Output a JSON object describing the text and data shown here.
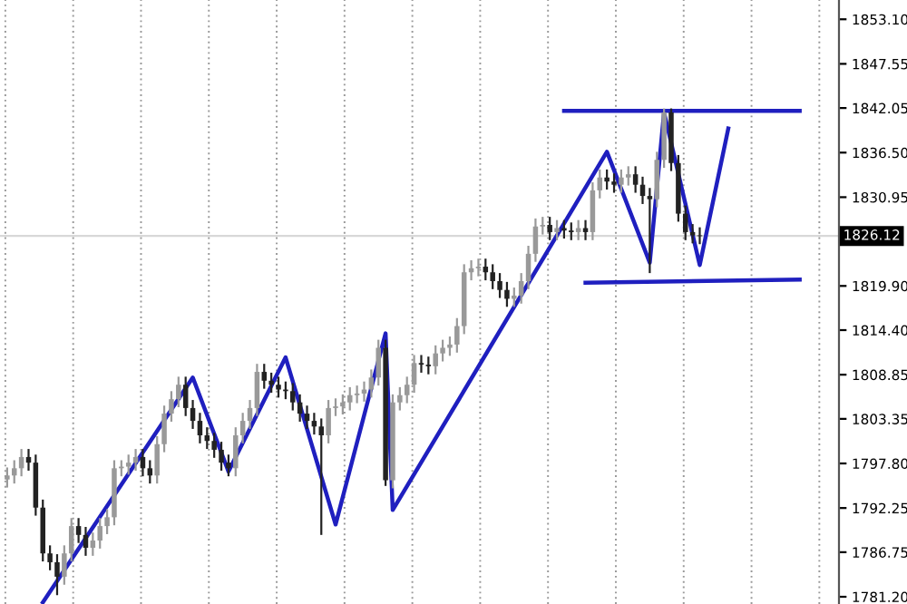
{
  "chart_data": {
    "type": "candlestick",
    "categories": [
      null,
      null,
      null,
      null,
      null,
      null,
      null,
      null,
      null,
      null,
      null,
      null,
      null,
      null,
      null,
      null,
      null,
      null,
      null,
      null,
      null,
      null,
      null,
      null,
      null,
      null,
      null,
      null,
      null,
      null,
      null,
      null,
      null,
      null,
      null,
      null,
      null,
      null,
      null,
      null,
      null,
      null,
      null,
      null,
      null,
      null,
      null,
      null,
      null,
      null,
      null,
      null,
      null,
      null,
      null,
      null,
      null,
      null,
      null,
      null,
      null,
      null,
      null,
      null,
      null,
      null,
      null,
      null,
      null,
      null,
      null,
      null,
      null,
      null,
      null,
      null,
      null,
      null,
      null,
      null,
      null,
      null,
      null,
      null,
      null,
      null,
      null,
      null,
      null,
      null,
      null,
      null,
      null,
      null,
      null,
      null,
      null,
      null,
      null,
      null,
      null,
      null,
      null,
      null,
      null,
      null,
      null,
      null,
      null,
      null,
      null,
      null
    ],
    "ohlc": [
      [
        1795.8,
        1797.3,
        1794.8,
        1796.3
      ],
      [
        1796.3,
        1798.2,
        1795.3,
        1797.2
      ],
      [
        1797.2,
        1799.6,
        1796.2,
        1798.6
      ],
      [
        1798.6,
        1799.6,
        1796.9,
        1797.9
      ],
      [
        1797.9,
        1798.9,
        1791.3,
        1792.3
      ],
      [
        1792.3,
        1793.3,
        1785.6,
        1786.6
      ],
      [
        1786.6,
        1787.6,
        1784.5,
        1785.5
      ],
      [
        1785.5,
        1786.5,
        1781.4,
        1783.7
      ],
      [
        1783.7,
        1787.6,
        1782.7,
        1786.6
      ],
      [
        1786.6,
        1791.0,
        1785.6,
        1790.0
      ],
      [
        1790.0,
        1791.0,
        1787.9,
        1788.9
      ],
      [
        1788.9,
        1789.9,
        1786.3,
        1787.3
      ],
      [
        1787.3,
        1789.2,
        1786.3,
        1788.2
      ],
      [
        1788.2,
        1791.0,
        1787.2,
        1790.0
      ],
      [
        1790.0,
        1792.1,
        1789.0,
        1791.1
      ],
      [
        1791.1,
        1798.2,
        1790.1,
        1797.2
      ],
      [
        1797.2,
        1798.2,
        1796.2,
        1797.4
      ],
      [
        1797.4,
        1798.9,
        1796.4,
        1797.9
      ],
      [
        1797.9,
        1799.6,
        1796.9,
        1798.6
      ],
      [
        1798.6,
        1799.6,
        1796.2,
        1797.2
      ],
      [
        1797.2,
        1798.2,
        1795.3,
        1796.3
      ],
      [
        1796.3,
        1801.2,
        1795.3,
        1800.2
      ],
      [
        1800.2,
        1805.0,
        1799.2,
        1804.0
      ],
      [
        1804.0,
        1806.8,
        1803.0,
        1805.8
      ],
      [
        1805.8,
        1808.6,
        1804.8,
        1807.6
      ],
      [
        1807.6,
        1808.6,
        1803.7,
        1804.7
      ],
      [
        1804.7,
        1805.7,
        1802.1,
        1803.1
      ],
      [
        1803.1,
        1804.1,
        1800.3,
        1801.3
      ],
      [
        1801.3,
        1802.3,
        1799.6,
        1800.6
      ],
      [
        1800.6,
        1801.6,
        1798.5,
        1799.5
      ],
      [
        1799.5,
        1800.5,
        1796.9,
        1797.9
      ],
      [
        1797.9,
        1798.9,
        1796.2,
        1797.2
      ],
      [
        1797.2,
        1802.3,
        1796.2,
        1801.3
      ],
      [
        1801.3,
        1804.1,
        1800.3,
        1803.1
      ],
      [
        1803.1,
        1805.7,
        1802.1,
        1804.7
      ],
      [
        1804.7,
        1810.2,
        1803.7,
        1809.2
      ],
      [
        1809.2,
        1810.2,
        1807.1,
        1808.1
      ],
      [
        1808.1,
        1809.1,
        1806.6,
        1807.6
      ],
      [
        1807.6,
        1808.6,
        1806.0,
        1807.0
      ],
      [
        1807.0,
        1808.0,
        1805.8,
        1806.8
      ],
      [
        1806.8,
        1807.8,
        1804.4,
        1805.4
      ],
      [
        1805.4,
        1806.4,
        1803.0,
        1804.0
      ],
      [
        1804.0,
        1805.0,
        1802.1,
        1803.1
      ],
      [
        1803.1,
        1804.1,
        1801.4,
        1802.4
      ],
      [
        1802.4,
        1803.4,
        1788.9,
        1801.3
      ],
      [
        1801.3,
        1805.7,
        1800.3,
        1804.7
      ],
      [
        1804.7,
        1805.9,
        1803.7,
        1804.9
      ],
      [
        1804.9,
        1806.4,
        1803.9,
        1805.4
      ],
      [
        1805.4,
        1807.3,
        1804.4,
        1806.3
      ],
      [
        1806.3,
        1807.5,
        1805.3,
        1806.5
      ],
      [
        1806.5,
        1808.0,
        1805.5,
        1807.0
      ],
      [
        1807.0,
        1809.5,
        1806.0,
        1808.5
      ],
      [
        1808.5,
        1813.2,
        1807.5,
        1812.2
      ],
      [
        1812.2,
        1813.2,
        1795.0,
        1795.7
      ],
      [
        1795.7,
        1806.4,
        1794.7,
        1805.4
      ],
      [
        1805.4,
        1807.3,
        1804.4,
        1806.3
      ],
      [
        1806.3,
        1808.6,
        1805.3,
        1807.6
      ],
      [
        1807.6,
        1811.3,
        1806.6,
        1810.3
      ],
      [
        1810.3,
        1811.3,
        1809.1,
        1810.1
      ],
      [
        1810.1,
        1811.1,
        1808.9,
        1809.9
      ],
      [
        1809.9,
        1812.5,
        1808.9,
        1811.5
      ],
      [
        1811.5,
        1813.2,
        1810.5,
        1812.2
      ],
      [
        1812.2,
        1813.6,
        1811.2,
        1812.6
      ],
      [
        1812.6,
        1815.9,
        1811.6,
        1814.9
      ],
      [
        1814.9,
        1822.6,
        1813.9,
        1821.6
      ],
      [
        1821.6,
        1823.1,
        1820.6,
        1822.1
      ],
      [
        1822.1,
        1823.3,
        1821.1,
        1822.3
      ],
      [
        1822.3,
        1823.3,
        1820.6,
        1821.6
      ],
      [
        1821.6,
        1822.6,
        1819.5,
        1820.5
      ],
      [
        1820.5,
        1821.5,
        1818.4,
        1819.4
      ],
      [
        1819.4,
        1820.4,
        1817.3,
        1818.3
      ],
      [
        1818.3,
        1819.7,
        1817.3,
        1818.7
      ],
      [
        1818.7,
        1821.5,
        1817.7,
        1820.5
      ],
      [
        1820.5,
        1824.9,
        1819.5,
        1823.9
      ],
      [
        1823.9,
        1828.3,
        1822.9,
        1827.3
      ],
      [
        1827.3,
        1828.5,
        1826.3,
        1827.5
      ],
      [
        1827.5,
        1828.5,
        1825.6,
        1826.6
      ],
      [
        1826.6,
        1828.1,
        1825.6,
        1827.1
      ],
      [
        1827.1,
        1828.1,
        1825.8,
        1826.8
      ],
      [
        1826.8,
        1827.8,
        1825.6,
        1826.6
      ],
      [
        1826.6,
        1828.1,
        1825.6,
        1827.1
      ],
      [
        1827.1,
        1828.1,
        1825.6,
        1826.6
      ],
      [
        1826.6,
        1832.8,
        1825.6,
        1831.8
      ],
      [
        1831.8,
        1834.4,
        1830.8,
        1833.4
      ],
      [
        1833.4,
        1834.4,
        1831.9,
        1832.9
      ],
      [
        1832.9,
        1833.9,
        1831.5,
        1832.5
      ],
      [
        1832.5,
        1834.4,
        1831.5,
        1833.4
      ],
      [
        1833.4,
        1834.8,
        1832.4,
        1833.8
      ],
      [
        1833.8,
        1834.8,
        1831.5,
        1832.5
      ],
      [
        1832.5,
        1833.5,
        1830.1,
        1831.1
      ],
      [
        1831.1,
        1832.1,
        1821.5,
        1830.7
      ],
      [
        1830.7,
        1836.6,
        1829.7,
        1835.6
      ],
      [
        1835.6,
        1842.0,
        1834.6,
        1841.5
      ],
      [
        1841.5,
        1842.0,
        1834.2,
        1835.2
      ],
      [
        1835.2,
        1836.2,
        1827.9,
        1828.9
      ],
      [
        1828.9,
        1829.9,
        1825.6,
        1826.6
      ],
      [
        1826.6,
        1827.6,
        1825.2,
        1826.2
      ],
      [
        1826.2,
        1827.2,
        1825.1,
        1826.1
      ],
      null,
      null,
      null,
      null,
      null,
      null,
      null,
      null,
      null,
      null,
      null,
      null,
      null,
      null
    ],
    "series": [
      {
        "type": "line",
        "color": "#1f1fbf",
        "values": [
          null,
          null,
          null,
          null,
          null,
          1780.5,
          null,
          null,
          null,
          null,
          null,
          null,
          null,
          null,
          null,
          null,
          null,
          null,
          null,
          null,
          null,
          null,
          null,
          null,
          null,
          null,
          1808.5,
          null,
          null,
          null,
          null,
          1796.8,
          null,
          null,
          null,
          null,
          null,
          null,
          null,
          1811.0,
          null,
          null,
          null,
          null,
          null,
          null,
          1790.2,
          null,
          null,
          null,
          null,
          null,
          null,
          1814.0,
          1792.0,
          null,
          null,
          null,
          null,
          null,
          null,
          null,
          null,
          null,
          null,
          null,
          null,
          null,
          null,
          null,
          null,
          null,
          null,
          null,
          null,
          null,
          null,
          null,
          null,
          null,
          null,
          null,
          null,
          null,
          1836.6,
          null,
          null,
          null,
          null,
          null,
          1822.8,
          null,
          1841.5,
          null,
          null,
          null,
          null,
          1822.5,
          null,
          null,
          null,
          1839.5,
          null,
          null,
          null,
          null,
          null,
          null,
          null,
          null,
          null,
          null
        ]
      },
      {
        "type": "line",
        "color": "#1f1fbf",
        "values": [
          null,
          null,
          null,
          null,
          null,
          null,
          null,
          null,
          null,
          null,
          null,
          null,
          null,
          null,
          null,
          null,
          null,
          null,
          null,
          null,
          null,
          null,
          null,
          null,
          null,
          null,
          null,
          null,
          null,
          null,
          null,
          null,
          null,
          null,
          null,
          null,
          null,
          null,
          null,
          null,
          null,
          null,
          null,
          null,
          null,
          null,
          null,
          null,
          null,
          null,
          null,
          null,
          null,
          null,
          null,
          null,
          null,
          null,
          null,
          null,
          null,
          null,
          null,
          null,
          null,
          null,
          null,
          null,
          null,
          null,
          null,
          null,
          null,
          null,
          null,
          null,
          null,
          null,
          1841.7,
          null,
          null,
          null,
          null,
          null,
          null,
          null,
          null,
          null,
          null,
          null,
          null,
          null,
          null,
          null,
          null,
          null,
          null,
          null,
          null,
          null,
          null,
          null,
          null,
          null,
          null,
          null,
          null,
          null,
          null,
          null,
          null,
          1841.7
        ]
      },
      {
        "type": "line",
        "color": "#1f1fbf",
        "values": [
          null,
          null,
          null,
          null,
          null,
          null,
          null,
          null,
          null,
          null,
          null,
          null,
          null,
          null,
          null,
          null,
          null,
          null,
          null,
          null,
          null,
          null,
          null,
          null,
          null,
          null,
          null,
          null,
          null,
          null,
          null,
          null,
          null,
          null,
          null,
          null,
          null,
          null,
          null,
          null,
          null,
          null,
          null,
          null,
          null,
          null,
          null,
          null,
          null,
          null,
          null,
          null,
          null,
          null,
          null,
          null,
          null,
          null,
          null,
          null,
          null,
          null,
          null,
          null,
          null,
          null,
          null,
          null,
          null,
          null,
          null,
          null,
          null,
          null,
          null,
          null,
          null,
          null,
          null,
          null,
          null,
          1820.3,
          null,
          null,
          null,
          null,
          null,
          null,
          null,
          null,
          null,
          null,
          null,
          null,
          null,
          null,
          null,
          null,
          null,
          null,
          null,
          null,
          null,
          null,
          null,
          null,
          null,
          null,
          null,
          null,
          null,
          1820.7
        ]
      }
    ],
    "ylim": [
      1780.3,
      1855.5
    ],
    "yticks": [
      {
        "value": 1781.2,
        "label": "1781.20"
      },
      {
        "value": 1786.75,
        "label": "1786.75"
      },
      {
        "value": 1792.25,
        "label": "1792.25"
      },
      {
        "value": 1797.8,
        "label": "1797.80"
      },
      {
        "value": 1803.35,
        "label": "1803.35"
      },
      {
        "value": 1808.85,
        "label": "1808.85"
      },
      {
        "value": 1814.4,
        "label": "1814.40"
      },
      {
        "value": 1819.9,
        "label": "1819.90"
      },
      {
        "value": 1830.95,
        "label": "1830.95"
      },
      {
        "value": 1836.5,
        "label": "1836.50"
      },
      {
        "value": 1842.05,
        "label": "1842.05"
      },
      {
        "value": 1847.55,
        "label": "1847.55"
      },
      {
        "value": 1853.1,
        "label": "1853.10"
      }
    ],
    "ref_lines": [
      {
        "axis": "y",
        "value": 1826.12,
        "label": "1826.12",
        "color": "#d8d8d8"
      }
    ],
    "grid": "x",
    "tick_labels": "y"
  }
}
